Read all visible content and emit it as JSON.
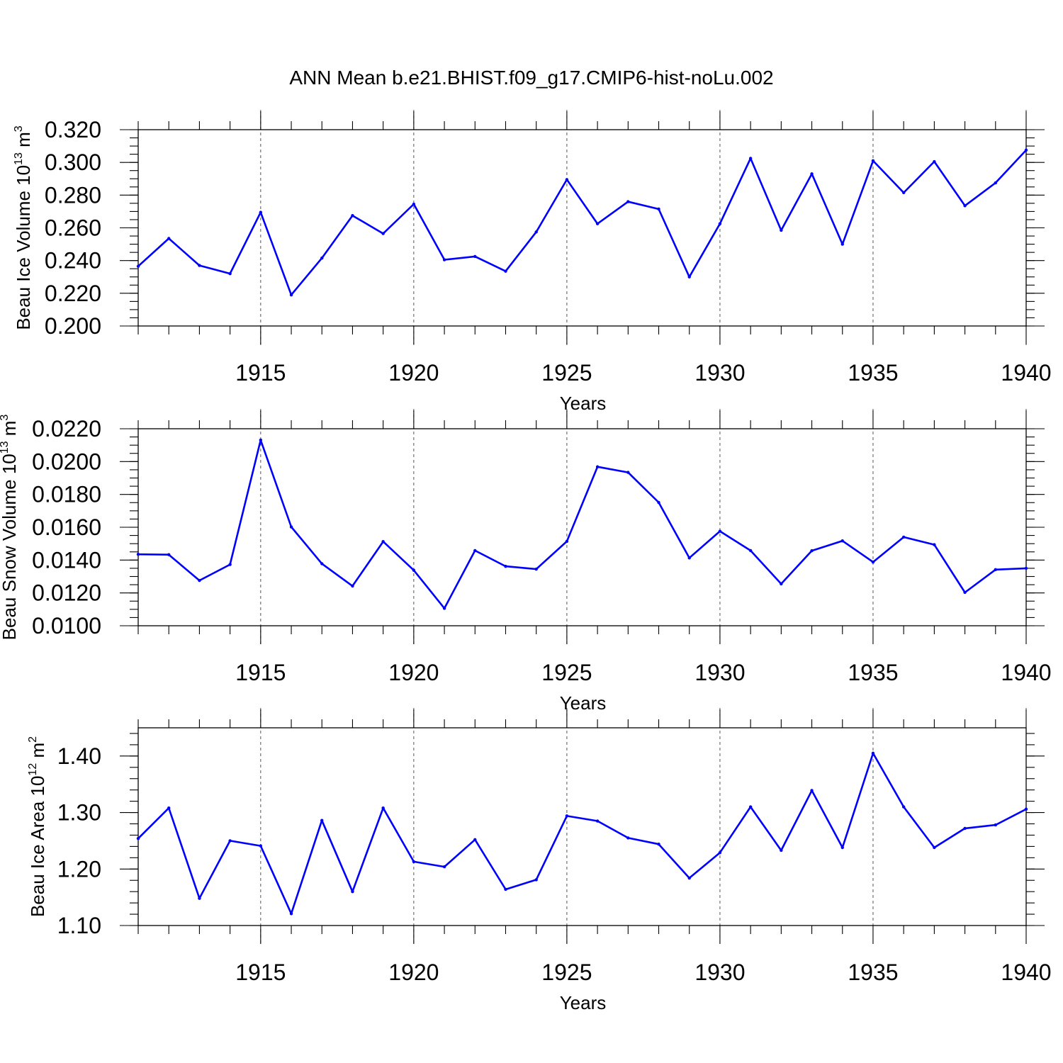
{
  "title": "ANN Mean b.e21.BHIST.f09_g17.CMIP6-hist-noLu.002",
  "colors": {
    "series": "#0000ff",
    "axes": "#000000",
    "grid": "#555555"
  },
  "chart_data": [
    {
      "type": "line",
      "ylabel": {
        "main": "Beau Ice Volume 10",
        "sup": "13",
        "unit": " m",
        "unit_sup": "3"
      },
      "xlabel": "Years",
      "xlim": [
        1911,
        1940
      ],
      "ylim": [
        0.2,
        0.32
      ],
      "xticks": [
        "1915",
        "1920",
        "1925",
        "1930",
        "1935",
        "1940"
      ],
      "yticks": [
        "0.200",
        "0.220",
        "0.240",
        "0.260",
        "0.280",
        "0.300",
        "0.320"
      ],
      "ytick_values": [
        0.2,
        0.22,
        0.24,
        0.26,
        0.28,
        0.3,
        0.32
      ],
      "y_minor_step": 0.005,
      "grid": "vertical-dashed",
      "x": [
        1911,
        1912,
        1913,
        1914,
        1915,
        1916,
        1917,
        1918,
        1919,
        1920,
        1921,
        1922,
        1923,
        1924,
        1925,
        1926,
        1927,
        1928,
        1929,
        1930,
        1931,
        1932,
        1933,
        1934,
        1935,
        1936,
        1937,
        1938,
        1939,
        1940
      ],
      "values": [
        0.2365,
        0.2535,
        0.237,
        0.232,
        0.2695,
        0.219,
        0.2415,
        0.2675,
        0.2565,
        0.2745,
        0.2405,
        0.2425,
        0.2335,
        0.2575,
        0.2895,
        0.2625,
        0.276,
        0.2715,
        0.23,
        0.2625,
        0.3025,
        0.2585,
        0.293,
        0.25,
        0.301,
        0.2815,
        0.3005,
        0.2735,
        0.2875,
        0.3075
      ]
    },
    {
      "type": "line",
      "ylabel": {
        "main": "Beau Snow Volume 10",
        "sup": "13",
        "unit": " m",
        "unit_sup": "3"
      },
      "xlabel": "Years",
      "xlim": [
        1911,
        1940
      ],
      "ylim": [
        0.01,
        0.022
      ],
      "xticks": [
        "1915",
        "1920",
        "1925",
        "1930",
        "1935",
        "1940"
      ],
      "yticks": [
        "0.0100",
        "0.0120",
        "0.0140",
        "0.0160",
        "0.0180",
        "0.0200",
        "0.0220"
      ],
      "ytick_values": [
        0.01,
        0.012,
        0.014,
        0.016,
        0.018,
        0.02,
        0.022
      ],
      "y_minor_step": 0.0005,
      "grid": "vertical-dashed",
      "x": [
        1911,
        1912,
        1913,
        1914,
        1915,
        1916,
        1917,
        1918,
        1919,
        1920,
        1921,
        1922,
        1923,
        1924,
        1925,
        1926,
        1927,
        1928,
        1929,
        1930,
        1931,
        1932,
        1933,
        1934,
        1935,
        1936,
        1937,
        1938,
        1939,
        1940
      ],
      "values": [
        0.01435,
        0.01433,
        0.01276,
        0.01373,
        0.02131,
        0.01602,
        0.01378,
        0.01242,
        0.01513,
        0.01338,
        0.01106,
        0.01458,
        0.01362,
        0.01345,
        0.01514,
        0.01968,
        0.01934,
        0.01751,
        0.01413,
        0.01576,
        0.01458,
        0.01255,
        0.01457,
        0.01517,
        0.01388,
        0.0154,
        0.01494,
        0.01203,
        0.01342,
        0.0135
      ]
    },
    {
      "type": "line",
      "ylabel": {
        "main": "Beau Ice Area 10",
        "sup": "12",
        "unit": " m",
        "unit_sup": "2"
      },
      "xlabel": "Years",
      "xlim": [
        1911,
        1940
      ],
      "ylim": [
        1.1,
        1.45
      ],
      "xticks": [
        "1915",
        "1920",
        "1925",
        "1930",
        "1935",
        "1940"
      ],
      "yticks": [
        "1.10",
        "1.20",
        "1.30",
        "1.40"
      ],
      "ytick_values": [
        1.1,
        1.2,
        1.3,
        1.4
      ],
      "y_minor_step": 0.02,
      "grid": "vertical-dashed",
      "x": [
        1911,
        1912,
        1913,
        1914,
        1915,
        1916,
        1917,
        1918,
        1919,
        1920,
        1921,
        1922,
        1923,
        1924,
        1925,
        1926,
        1927,
        1928,
        1929,
        1930,
        1931,
        1932,
        1933,
        1934,
        1935,
        1936,
        1937,
        1938,
        1939,
        1940
      ],
      "values": [
        1.254,
        1.308,
        1.148,
        1.25,
        1.241,
        1.121,
        1.286,
        1.16,
        1.308,
        1.213,
        1.204,
        1.252,
        1.164,
        1.181,
        1.294,
        1.285,
        1.255,
        1.244,
        1.184,
        1.229,
        1.31,
        1.233,
        1.339,
        1.238,
        1.405,
        1.31,
        1.238,
        1.272,
        1.278,
        1.306
      ]
    }
  ]
}
